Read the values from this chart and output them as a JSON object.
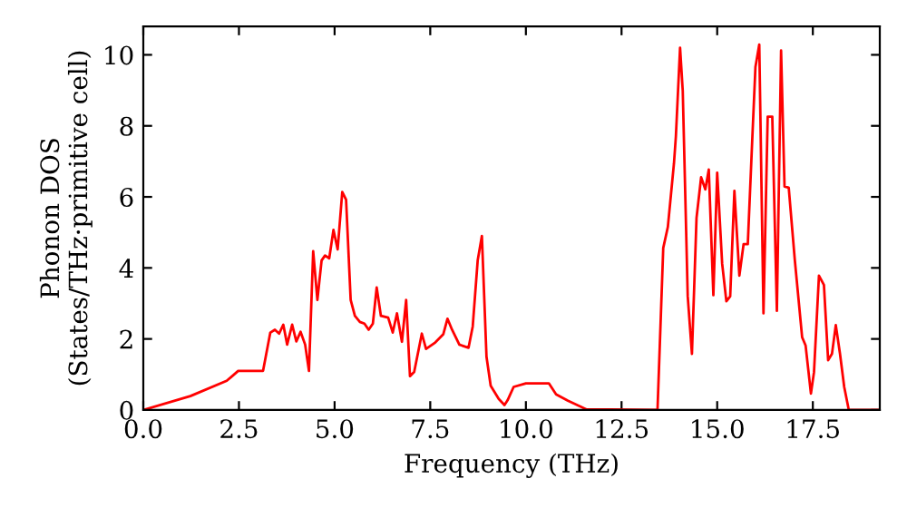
{
  "chart_data": {
    "type": "line",
    "xlabel": "Frequency (THz)",
    "ylabel": "Phonon DOS\n(States/THz·primitive cell)",
    "xlim": [
      0,
      19.25
    ],
    "ylim": [
      0,
      10.8
    ],
    "xticks": [
      {
        "value": 0,
        "label": "0.0"
      },
      2.5,
      {
        "value": 5,
        "label": "5.0"
      },
      7.5,
      {
        "value": 10,
        "label": "10.0"
      },
      12.5,
      {
        "value": 15,
        "label": "15.0"
      },
      17.5
    ],
    "yticks": [
      0,
      2,
      4,
      6,
      8,
      10
    ],
    "grid": false,
    "legend": false,
    "marker": "none",
    "line_style": "solid",
    "series": [
      {
        "color": "#ff0000",
        "x": [
          0,
          1.23,
          2.18,
          2.48,
          3.13,
          3.32,
          3.44,
          3.55,
          3.66,
          3.76,
          3.89,
          4.0,
          4.11,
          4.23,
          4.33,
          4.44,
          4.55,
          4.66,
          4.75,
          4.86,
          4.97,
          5.08,
          5.2,
          5.3,
          5.42,
          5.53,
          5.66,
          5.78,
          5.89,
          6.0,
          6.1,
          6.21,
          6.4,
          6.52,
          6.63,
          6.76,
          6.87,
          6.97,
          7.08,
          7.28,
          7.39,
          7.63,
          7.84,
          7.95,
          8.07,
          8.26,
          8.5,
          8.61,
          8.74,
          8.85,
          8.97,
          9.08,
          9.29,
          9.44,
          9.52,
          9.68,
          10.0,
          10.6,
          10.79,
          11.1,
          11.58,
          13.44,
          13.59,
          13.71,
          13.87,
          13.92,
          14.03,
          14.1,
          14.23,
          14.34,
          14.46,
          14.58,
          14.69,
          14.78,
          14.9,
          15.0,
          15.13,
          15.24,
          15.34,
          15.45,
          15.58,
          15.69,
          15.8,
          15.92,
          16.0,
          16.1,
          16.21,
          16.32,
          16.44,
          16.56,
          16.67,
          16.76,
          16.87,
          17.03,
          17.22,
          17.31,
          17.45,
          17.53,
          17.66,
          17.79,
          17.9,
          18.0,
          18.1,
          18.21,
          18.32,
          18.44,
          19.25
        ],
        "values": [
          0,
          0.39,
          0.82,
          1.1,
          1.1,
          2.18,
          2.26,
          2.15,
          2.4,
          1.84,
          2.4,
          1.93,
          2.2,
          1.84,
          1.1,
          4.47,
          3.1,
          4.21,
          4.35,
          4.27,
          5.07,
          4.52,
          6.14,
          5.92,
          3.1,
          2.65,
          2.48,
          2.43,
          2.26,
          2.43,
          3.45,
          2.65,
          2.6,
          2.18,
          2.72,
          1.92,
          3.1,
          0.95,
          1.07,
          2.15,
          1.72,
          1.9,
          2.13,
          2.57,
          2.26,
          1.84,
          1.75,
          2.35,
          4.21,
          4.9,
          1.5,
          0.68,
          0.31,
          0.14,
          0.27,
          0.65,
          0.75,
          0.75,
          0.44,
          0.26,
          0.02,
          0,
          4.56,
          5.15,
          6.94,
          7.7,
          10.2,
          8.98,
          3.2,
          1.58,
          5.41,
          6.55,
          6.21,
          6.77,
          3.23,
          6.68,
          4.12,
          3.06,
          3.2,
          6.17,
          3.78,
          4.67,
          4.67,
          7.7,
          9.66,
          10.29,
          2.72,
          8.26,
          8.26,
          2.79,
          10.12,
          6.29,
          6.26,
          4.21,
          2.05,
          1.82,
          0.46,
          1.06,
          3.78,
          3.52,
          1.4,
          1.58,
          2.39,
          1.58,
          0.65,
          0,
          0
        ]
      }
    ]
  }
}
